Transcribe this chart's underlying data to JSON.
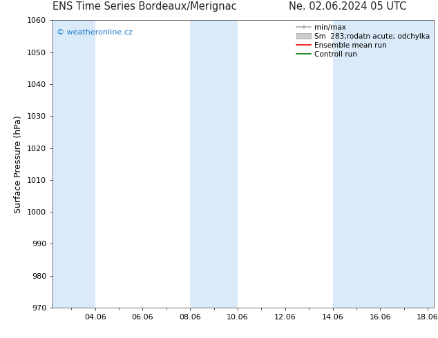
{
  "title_left": "ENS Time Series Bordeaux/Merignac",
  "title_right": "Ne. 02.06.2024 05 UTC",
  "ylabel": "Surface Pressure (hPa)",
  "ylim": [
    970,
    1060
  ],
  "yticks": [
    970,
    980,
    990,
    1000,
    1010,
    1020,
    1030,
    1040,
    1050,
    1060
  ],
  "watermark": "© weatheronline.cz",
  "watermark_color": "#1a7acc",
  "bg_color": "#ffffff",
  "plot_bg_color": "#ffffff",
  "shaded_regions": [
    {
      "xstart": 2.208,
      "xend": 4.0
    },
    {
      "xstart": 8.0,
      "xend": 10.0
    },
    {
      "xstart": 14.0,
      "xend": 16.0
    },
    {
      "xstart": 16.0,
      "xend": 18.25
    }
  ],
  "shaded_color": "#daeaf8",
  "xlim_lo": 2.208,
  "xlim_hi": 18.25,
  "xtick_pos": [
    4.0,
    6.0,
    8.0,
    10.0,
    12.0,
    14.0,
    16.0,
    18.0
  ],
  "xtick_labels": [
    "04.06",
    "06.06",
    "08.06",
    "10.06",
    "12.06",
    "14.06",
    "16.06",
    "18.06"
  ],
  "title_fontsize": 10.5,
  "axis_label_fontsize": 9,
  "tick_fontsize": 8,
  "watermark_fontsize": 8,
  "legend_fontsize": 7.5
}
